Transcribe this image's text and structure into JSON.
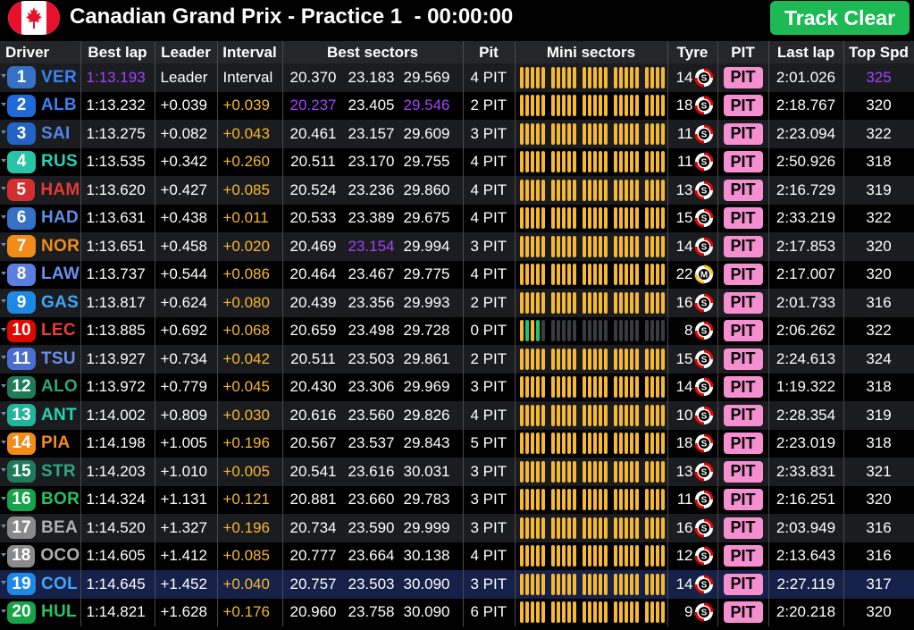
{
  "header": {
    "title": "Canadian Grand Prix - Practice 1  - 00:00:00",
    "status_button": "Track Clear",
    "flag_icon": "canada-flag-icon"
  },
  "colors": {
    "yellow": "#f5b82e",
    "purple": "#a342ff",
    "pit_pink": "#f58fd0",
    "track_clear_green": "#1db954"
  },
  "columns": [
    "Driver",
    "Best lap",
    "Leader",
    "Interval",
    "Best sectors",
    "Pit",
    "Mini sectors",
    "Tyre",
    "PIT",
    "Last lap",
    "Top Spd"
  ],
  "rows": [
    {
      "pos": "1",
      "code": "VER",
      "team_color": "#3671c6",
      "code_color": "#3b82f6",
      "best_lap": "1:13.193",
      "best_lap_purple": true,
      "leader": "Leader",
      "interval": "Interval",
      "interval_yellow": false,
      "s1": "20.370",
      "s2": "23.183",
      "s3": "29.569",
      "pit": "4 PIT",
      "mini": "yellow",
      "tyre_laps": "14",
      "tyre": "S",
      "pit_btn": "PIT",
      "last_lap": "2:01.026",
      "top_speed": "325",
      "speed_purple": true
    },
    {
      "pos": "2",
      "code": "ALB",
      "team_color": "#1e6ad8",
      "code_color": "#3b82f6",
      "best_lap": "1:13.232",
      "leader": "+0.039",
      "interval": "+0.039",
      "interval_yellow": true,
      "s1": "20.237",
      "s1_purple": true,
      "s2": "23.405",
      "s3": "29.546",
      "s3_purple": true,
      "pit": "2 PIT",
      "mini": "yellow",
      "tyre_laps": "18",
      "tyre": "S",
      "pit_btn": "PIT",
      "last_lap": "2:18.767",
      "top_speed": "320"
    },
    {
      "pos": "3",
      "code": "SAI",
      "team_color": "#2463c6",
      "code_color": "#4f86e8",
      "best_lap": "1:13.275",
      "leader": "+0.082",
      "interval": "+0.043",
      "interval_yellow": true,
      "s1": "20.461",
      "s2": "23.157",
      "s3": "29.609",
      "pit": "3 PIT",
      "mini": "yellow",
      "tyre_laps": "11",
      "tyre": "S",
      "pit_btn": "PIT",
      "last_lap": "2:23.094",
      "top_speed": "322"
    },
    {
      "pos": "4",
      "code": "RUS",
      "team_color": "#27c4a8",
      "code_color": "#27d3b4",
      "best_lap": "1:13.535",
      "leader": "+0.342",
      "interval": "+0.260",
      "interval_yellow": true,
      "s1": "20.511",
      "s2": "23.170",
      "s3": "29.755",
      "pit": "4 PIT",
      "mini": "yellow",
      "tyre_laps": "11",
      "tyre": "S",
      "pit_btn": "PIT",
      "last_lap": "2:50.926",
      "top_speed": "318"
    },
    {
      "pos": "5",
      "code": "HAM",
      "team_color": "#d32f2f",
      "code_color": "#e53935",
      "best_lap": "1:13.620",
      "leader": "+0.427",
      "interval": "+0.085",
      "interval_yellow": true,
      "s1": "20.524",
      "s2": "23.236",
      "s3": "29.860",
      "pit": "4 PIT",
      "mini": "yellow",
      "tyre_laps": "13",
      "tyre": "S",
      "pit_btn": "PIT",
      "last_lap": "2:16.729",
      "top_speed": "319"
    },
    {
      "pos": "6",
      "code": "HAD",
      "team_color": "#3671c6",
      "code_color": "#5b8fe0",
      "best_lap": "1:13.631",
      "leader": "+0.438",
      "interval": "+0.011",
      "interval_yellow": true,
      "s1": "20.533",
      "s2": "23.389",
      "s3": "29.675",
      "pit": "4 PIT",
      "mini": "yellow",
      "tyre_laps": "15",
      "tyre": "S",
      "pit_btn": "PIT",
      "last_lap": "2:33.219",
      "top_speed": "322"
    },
    {
      "pos": "7",
      "code": "NOR",
      "team_color": "#f28c18",
      "code_color": "#f28c18",
      "best_lap": "1:13.651",
      "leader": "+0.458",
      "interval": "+0.020",
      "interval_yellow": true,
      "s1": "20.469",
      "s2": "23.154",
      "s2_purple": true,
      "s3": "29.994",
      "pit": "3 PIT",
      "mini": "yellow",
      "tyre_laps": "14",
      "tyre": "S",
      "pit_btn": "PIT",
      "last_lap": "2:17.853",
      "top_speed": "320"
    },
    {
      "pos": "8",
      "code": "LAW",
      "team_color": "#5b7fe0",
      "code_color": "#6b8ff0",
      "best_lap": "1:13.737",
      "leader": "+0.544",
      "interval": "+0.086",
      "interval_yellow": true,
      "s1": "20.464",
      "s2": "23.467",
      "s3": "29.775",
      "pit": "4 PIT",
      "mini": "yellow",
      "tyre_laps": "22",
      "tyre": "M",
      "pit_btn": "PIT",
      "last_lap": "2:17.007",
      "top_speed": "320"
    },
    {
      "pos": "9",
      "code": "GAS",
      "team_color": "#1e88e5",
      "code_color": "#42a5f5",
      "best_lap": "1:13.817",
      "leader": "+0.624",
      "interval": "+0.080",
      "interval_yellow": true,
      "s1": "20.439",
      "s2": "23.356",
      "s3": "29.993",
      "pit": "2 PIT",
      "mini": "yellow",
      "tyre_laps": "16",
      "tyre": "S",
      "pit_btn": "PIT",
      "last_lap": "2:01.733",
      "top_speed": "316"
    },
    {
      "pos": "10",
      "code": "LEC",
      "team_color": "#e10600",
      "code_color": "#ef3b36",
      "best_lap": "1:13.885",
      "leader": "+0.692",
      "interval": "+0.068",
      "interval_yellow": true,
      "s1": "20.659",
      "s2": "23.498",
      "s3": "29.728",
      "pit": "0 PIT",
      "mini": "partial",
      "tyre_laps": "8",
      "tyre": "S",
      "pit_btn": "PIT",
      "last_lap": "2:06.262",
      "top_speed": "322"
    },
    {
      "pos": "11",
      "code": "TSU",
      "team_color": "#4a6fd0",
      "code_color": "#6b8ff0",
      "best_lap": "1:13.927",
      "leader": "+0.734",
      "interval": "+0.042",
      "interval_yellow": true,
      "s1": "20.511",
      "s2": "23.503",
      "s3": "29.861",
      "pit": "2 PIT",
      "mini": "yellow",
      "tyre_laps": "15",
      "tyre": "S",
      "pit_btn": "PIT",
      "last_lap": "2:24.613",
      "top_speed": "324"
    },
    {
      "pos": "12",
      "code": "ALO",
      "team_color": "#1f7a5a",
      "code_color": "#2ba77c",
      "best_lap": "1:13.972",
      "leader": "+0.779",
      "interval": "+0.045",
      "interval_yellow": true,
      "s1": "20.430",
      "s2": "23.306",
      "s3": "29.969",
      "pit": "3 PIT",
      "mini": "yellow",
      "tyre_laps": "14",
      "tyre": "S",
      "pit_btn": "PIT",
      "last_lap": "1:19.322",
      "top_speed": "318"
    },
    {
      "pos": "13",
      "code": "ANT",
      "team_color": "#22b59a",
      "code_color": "#27d3b4",
      "best_lap": "1:14.002",
      "leader": "+0.809",
      "interval": "+0.030",
      "interval_yellow": true,
      "s1": "20.616",
      "s2": "23.560",
      "s3": "29.826",
      "pit": "4 PIT",
      "mini": "yellow",
      "tyre_laps": "10",
      "tyre": "S",
      "pit_btn": "PIT",
      "last_lap": "2:28.354",
      "top_speed": "319"
    },
    {
      "pos": "14",
      "code": "PIA",
      "team_color": "#f28c18",
      "code_color": "#f28c18",
      "best_lap": "1:14.198",
      "leader": "+1.005",
      "interval": "+0.196",
      "interval_yellow": true,
      "s1": "20.567",
      "s2": "23.537",
      "s3": "29.843",
      "pit": "5 PIT",
      "mini": "yellow",
      "tyre_laps": "18",
      "tyre": "S",
      "pit_btn": "PIT",
      "last_lap": "2:23.019",
      "top_speed": "318"
    },
    {
      "pos": "15",
      "code": "STR",
      "team_color": "#1f7a5a",
      "code_color": "#2ba77c",
      "best_lap": "1:14.203",
      "leader": "+1.010",
      "interval": "+0.005",
      "interval_yellow": true,
      "s1": "20.541",
      "s2": "23.616",
      "s3": "30.031",
      "pit": "3 PIT",
      "mini": "yellow",
      "tyre_laps": "13",
      "tyre": "S",
      "pit_btn": "PIT",
      "last_lap": "2:33.831",
      "top_speed": "321"
    },
    {
      "pos": "16",
      "code": "BOR",
      "team_color": "#16a34a",
      "code_color": "#22c55e",
      "best_lap": "1:14.324",
      "leader": "+1.131",
      "interval": "+0.121",
      "interval_yellow": true,
      "s1": "20.881",
      "s2": "23.660",
      "s3": "29.783",
      "pit": "3 PIT",
      "mini": "yellow",
      "tyre_laps": "11",
      "tyre": "S",
      "pit_btn": "PIT",
      "last_lap": "2:16.251",
      "top_speed": "320"
    },
    {
      "pos": "17",
      "code": "BEA",
      "team_color": "#8a8a8a",
      "code_color": "#b0b0b0",
      "best_lap": "1:14.520",
      "leader": "+1.327",
      "interval": "+0.196",
      "interval_yellow": true,
      "s1": "20.734",
      "s2": "23.590",
      "s3": "29.999",
      "pit": "3 PIT",
      "mini": "yellow",
      "tyre_laps": "16",
      "tyre": "S",
      "pit_btn": "PIT",
      "last_lap": "2:03.949",
      "top_speed": "316"
    },
    {
      "pos": "18",
      "code": "OCO",
      "team_color": "#8a8a8a",
      "code_color": "#b0b0b0",
      "best_lap": "1:14.605",
      "leader": "+1.412",
      "interval": "+0.085",
      "interval_yellow": true,
      "s1": "20.777",
      "s2": "23.664",
      "s3": "30.138",
      "pit": "4 PIT",
      "mini": "yellow",
      "tyre_laps": "12",
      "tyre": "S",
      "pit_btn": "PIT",
      "last_lap": "2:13.643",
      "top_speed": "316"
    },
    {
      "pos": "19",
      "code": "COL",
      "team_color": "#1e88e5",
      "code_color": "#42a5f5",
      "best_lap": "1:14.645",
      "leader": "+1.452",
      "interval": "+0.040",
      "interval_yellow": true,
      "s1": "20.757",
      "s2": "23.503",
      "s3": "30.090",
      "pit": "3 PIT",
      "mini": "yellow",
      "tyre_laps": "14",
      "tyre": "S",
      "pit_btn": "PIT",
      "last_lap": "2:27.119",
      "top_speed": "317",
      "highlight": true
    },
    {
      "pos": "20",
      "code": "HUL",
      "team_color": "#16a34a",
      "code_color": "#22c55e",
      "best_lap": "1:14.821",
      "leader": "+1.628",
      "interval": "+0.176",
      "interval_yellow": true,
      "s1": "20.960",
      "s2": "23.758",
      "s3": "30.090",
      "pit": "6 PIT",
      "mini": "yellow",
      "tyre_laps": "9",
      "tyre": "S",
      "pit_btn": "PIT",
      "last_lap": "2:20.218",
      "top_speed": "320"
    }
  ]
}
